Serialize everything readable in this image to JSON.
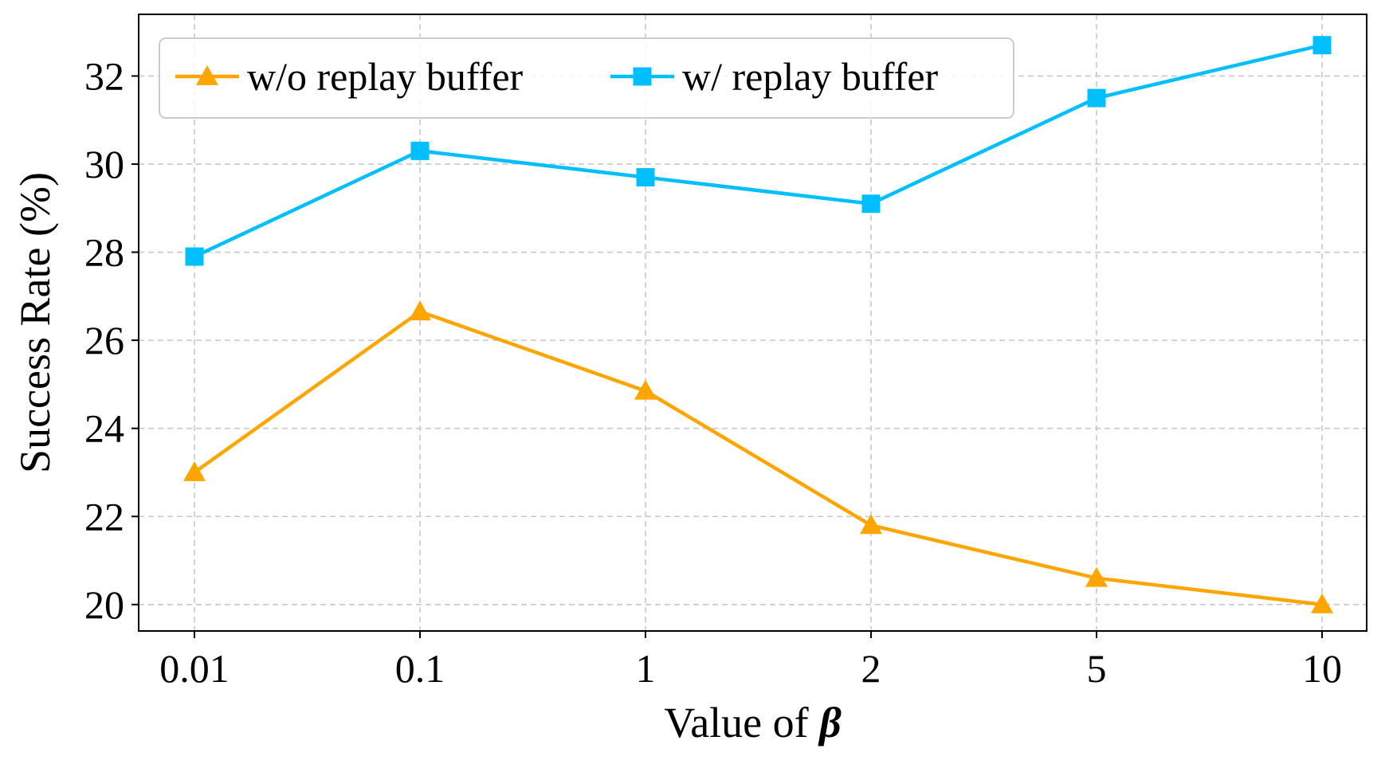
{
  "chart_data": {
    "type": "line",
    "categories": [
      "0.01",
      "0.1",
      "1",
      "2",
      "5",
      "10"
    ],
    "xlabel": "Value of ",
    "xlabel_symbol": "β",
    "ylabel": "Success Rate (%)",
    "ylim": [
      19.4,
      33.4
    ],
    "yticks": [
      20,
      22,
      24,
      26,
      28,
      30,
      32
    ],
    "grid": true,
    "legend_position": "top-left",
    "series": [
      {
        "name": "w/o replay buffer",
        "color": "#FFA500",
        "marker": "triangle",
        "values": [
          23.0,
          26.65,
          24.85,
          21.8,
          20.6,
          20.0
        ]
      },
      {
        "name": "w/ replay buffer",
        "color": "#00BFFF",
        "marker": "square",
        "values": [
          27.9,
          30.3,
          29.7,
          29.1,
          31.5,
          32.7
        ]
      }
    ]
  }
}
